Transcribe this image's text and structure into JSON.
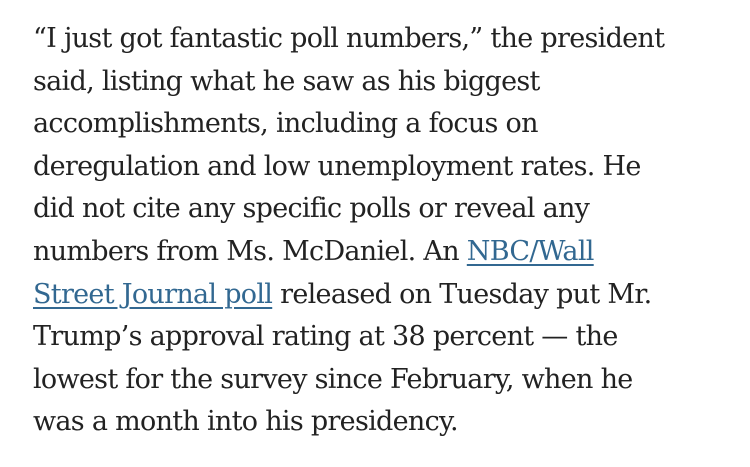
{
  "article": {
    "lines": [
      "“I just got fantastic poll numbers,” the president",
      "said, listing what he saw as his biggest",
      "accomplishments, including a focus on",
      "deregulation and low unemployment rates. He",
      "did not cite any specific polls or reveal any",
      {
        "before": "numbers from Ms. McDaniel. An ",
        "link": "NBC/Wall"
      },
      {
        "link": "Street Journal poll",
        "after": " released on Tuesday put Mr."
      },
      "Trump’s approval rating at 38 percent — the",
      "lowest for the survey since February, when he",
      "was a month into his presidency."
    ]
  }
}
